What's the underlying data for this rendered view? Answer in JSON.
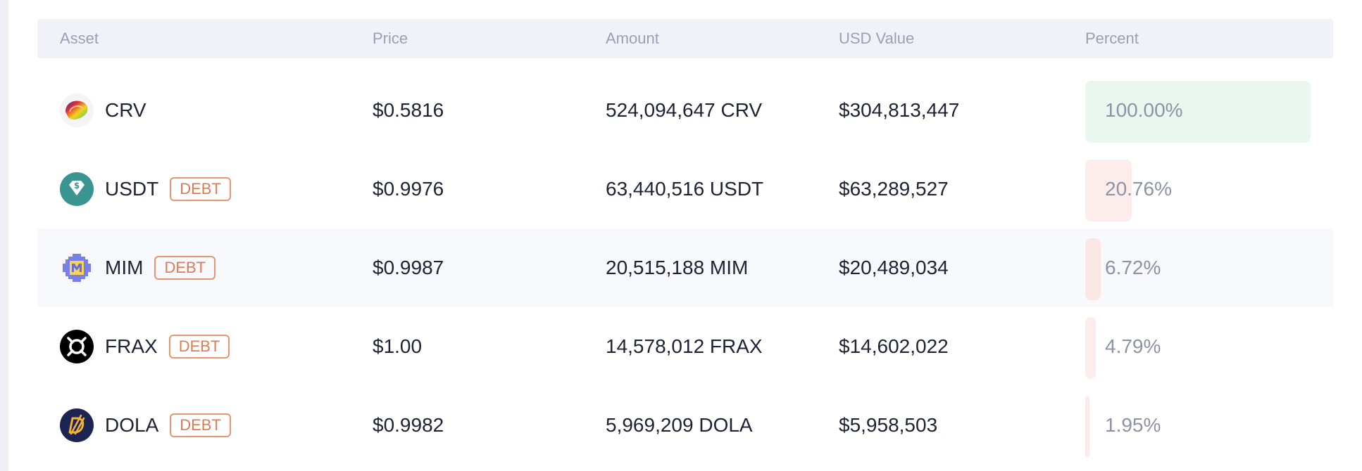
{
  "table": {
    "headers": {
      "asset": "Asset",
      "price": "Price",
      "amount": "Amount",
      "usd_value": "USD Value",
      "percent": "Percent"
    },
    "rows": [
      {
        "icon": "crv-icon",
        "symbol": "CRV",
        "badge": "",
        "price": "$0.5816",
        "amount": "524,094,647 CRV",
        "usd_value": "$304,813,447",
        "percent": "100.00%",
        "percent_value": 100,
        "bar_color": "#e9f7ee"
      },
      {
        "icon": "usdt-icon",
        "symbol": "USDT",
        "badge": "DEBT",
        "price": "$0.9976",
        "amount": "63,440,516 USDT",
        "usd_value": "$63,289,527",
        "percent": "20.76%",
        "percent_value": 20.76,
        "bar_color": "#fdecec"
      },
      {
        "icon": "mim-icon",
        "symbol": "MIM",
        "badge": "DEBT",
        "price": "$0.9987",
        "amount": "20,515,188 MIM",
        "usd_value": "$20,489,034",
        "percent": "6.72%",
        "percent_value": 6.72,
        "bar_color": "#fbe6e6"
      },
      {
        "icon": "frax-icon",
        "symbol": "FRAX",
        "badge": "DEBT",
        "price": "$1.00",
        "amount": "14,578,012 FRAX",
        "usd_value": "$14,602,022",
        "percent": "4.79%",
        "percent_value": 4.79,
        "bar_color": "#fdecec"
      },
      {
        "icon": "dola-icon",
        "symbol": "DOLA",
        "badge": "DEBT",
        "price": "$0.9982",
        "amount": "5,969,209 DOLA",
        "usd_value": "$5,958,503",
        "percent": "1.95%",
        "percent_value": 1.95,
        "bar_color": "#fdecec"
      }
    ]
  },
  "colors": {
    "header_bg": "#f0f2f7",
    "header_text": "#9aa0b4",
    "body_text": "#1d2335",
    "debt_badge": "#e07a55",
    "usdt_teal": "#3a9590",
    "dola_navy": "#1c2452",
    "dola_gold": "#f2b33d"
  }
}
